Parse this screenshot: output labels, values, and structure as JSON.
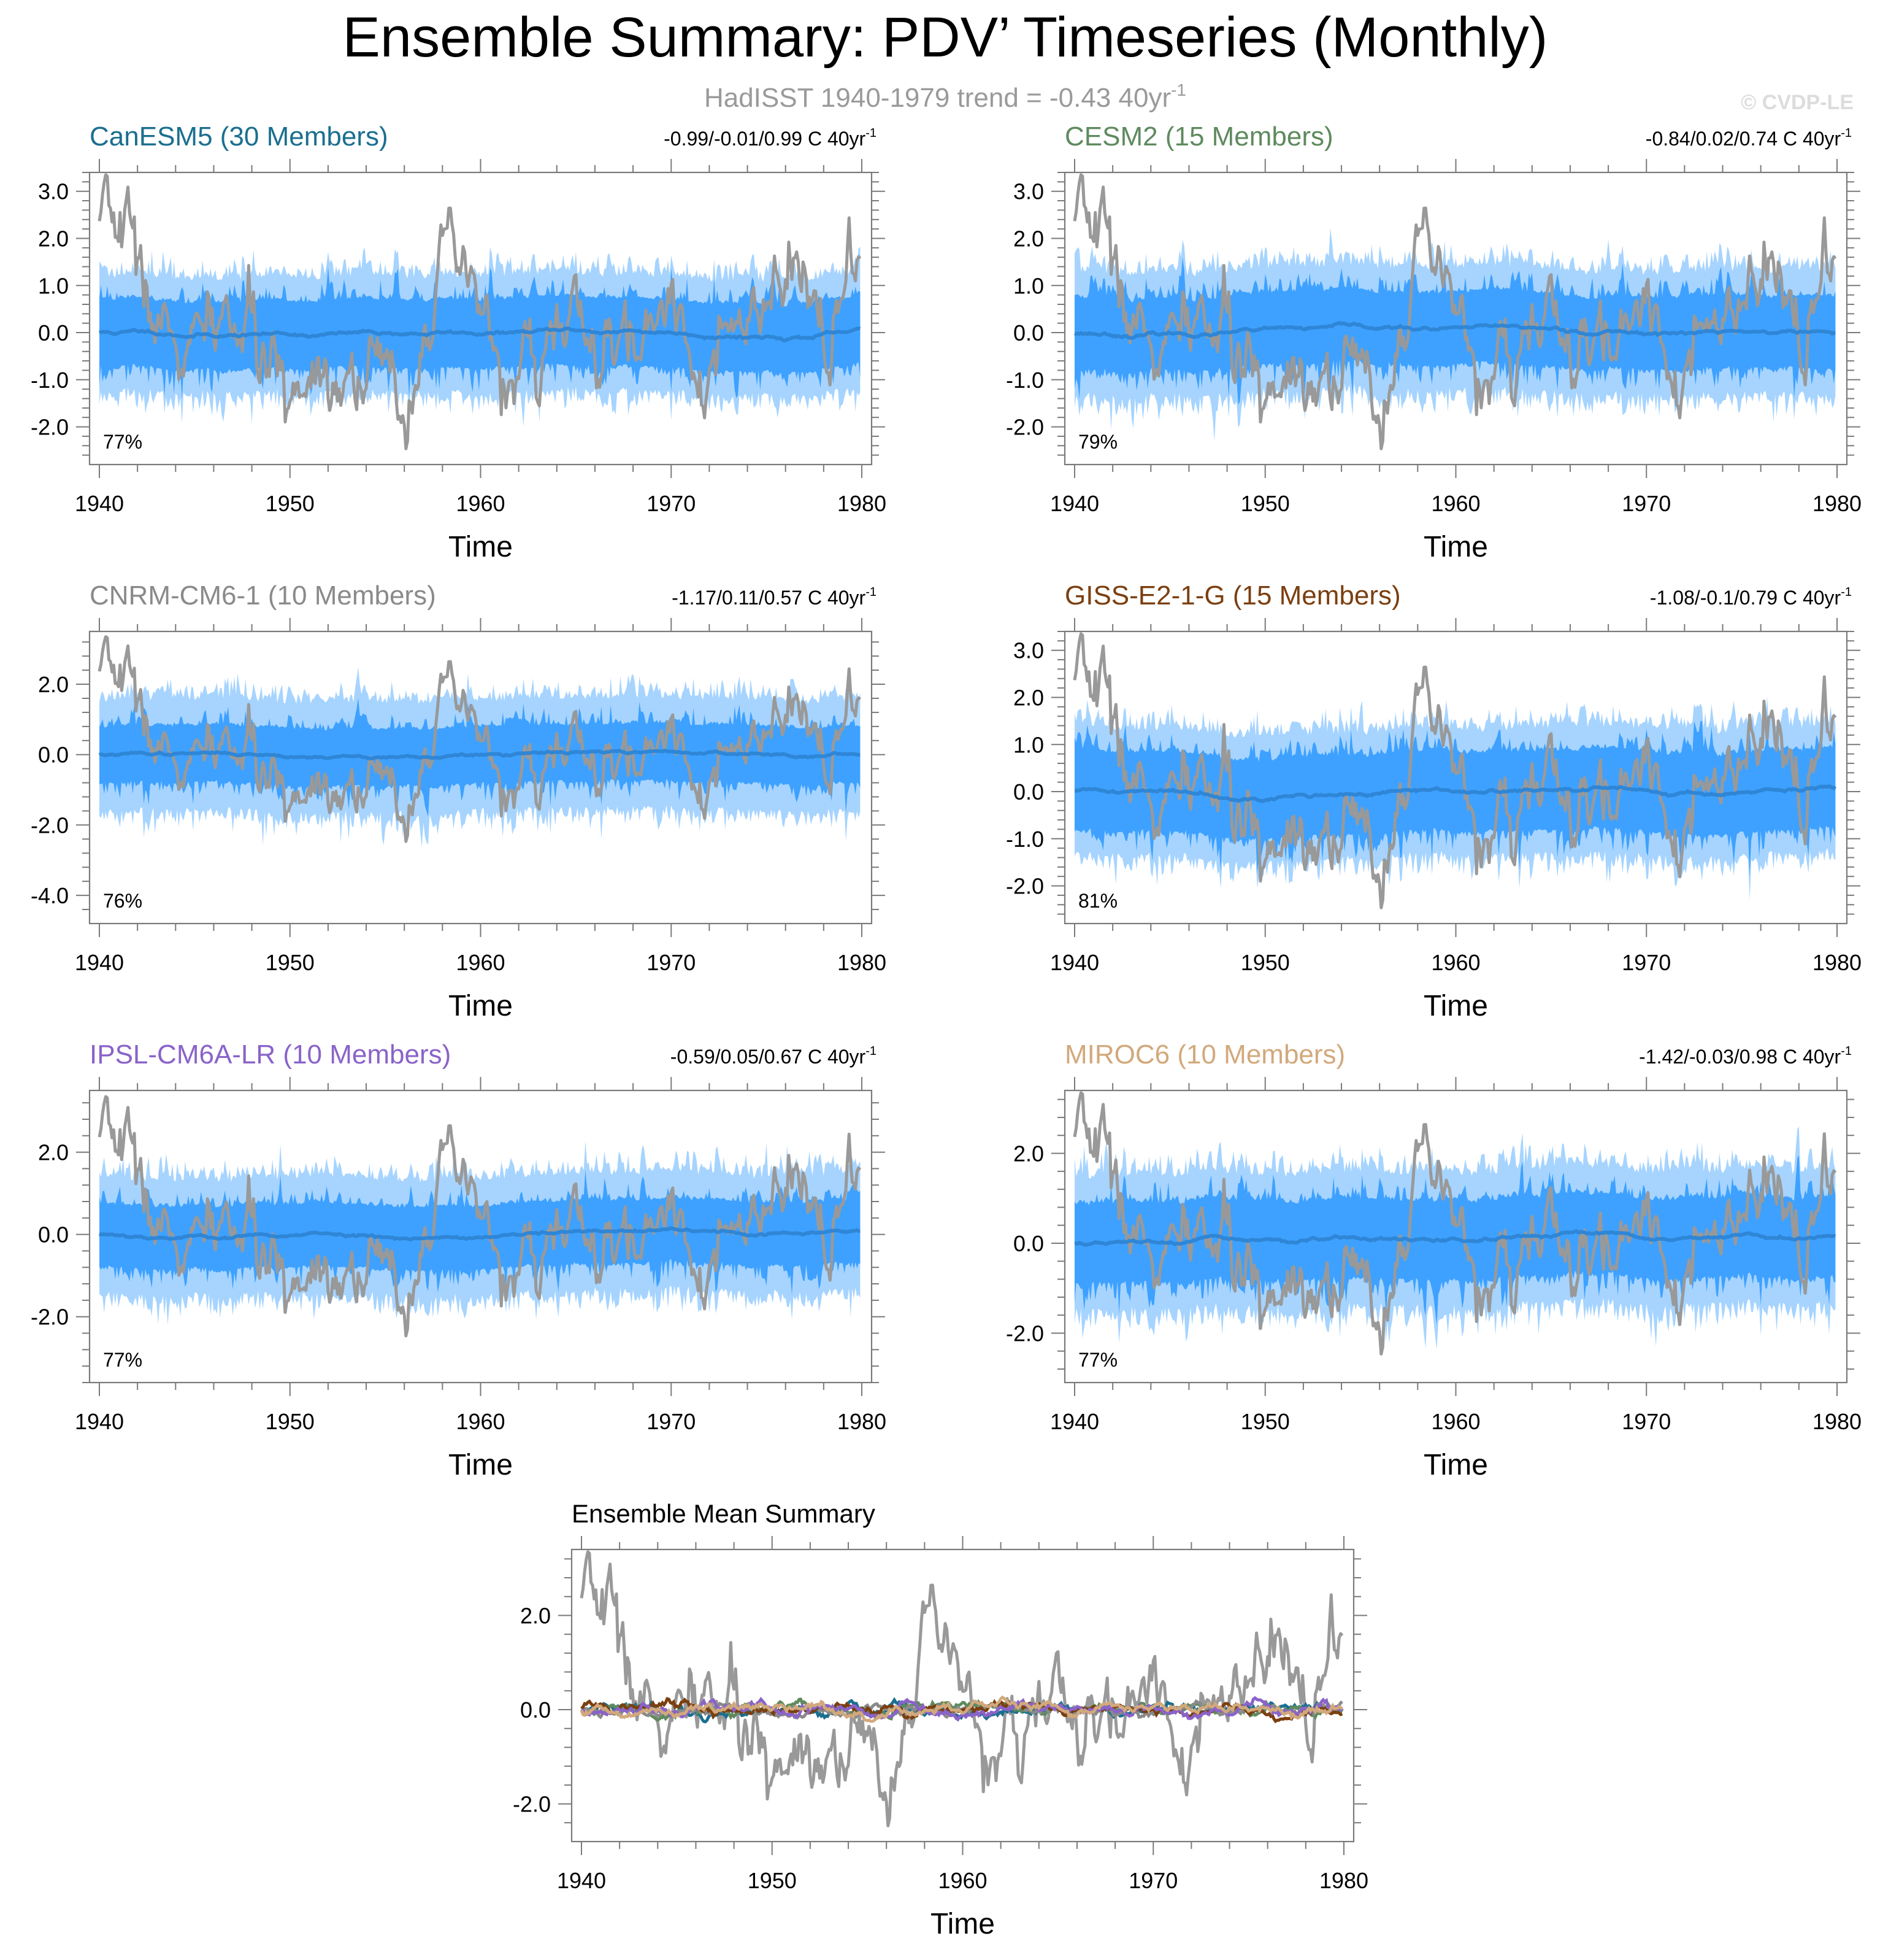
{
  "figure": {
    "title": "Ensemble Summary: PDV’ Timeseries (Monthly)",
    "subtitle_base": "HadISST 1940-1979 trend = -0.43 40yr",
    "subtitle_sup": "-1",
    "watermark": "© CVDP-LE"
  },
  "colors": {
    "obs": "#999999",
    "mean_line": "#2f86d6",
    "inner_band": "#3ea1ff",
    "outer_band": "#a6d4ff",
    "axis": "#7a7a7a"
  },
  "chart_data": [
    {
      "type": "area",
      "title": "CanESM5 (30 Members)",
      "title_color": "#1b6f8f",
      "trend_text": "-0.99/-0.01/0.99 C 40yr",
      "trend_sup": "-1",
      "percent_label": "77%",
      "xlabel": "Time",
      "xlim": [
        1940,
        1980
      ],
      "xticks": [
        "1940",
        "1950",
        "1960",
        "1970",
        "1980"
      ],
      "ylim": [
        -2.8,
        3.4
      ],
      "yticks": [
        "3.0",
        "2.0",
        "1.0",
        "0.0",
        "-1.0",
        "-2.0"
      ],
      "ytick_values": [
        3,
        2,
        1,
        0,
        -1,
        -2
      ],
      "band_scale": {
        "inner": 0.95,
        "outer": 1.65
      },
      "seed": 11
    },
    {
      "type": "area",
      "title": "CESM2 (15 Members)",
      "title_color": "#5f8a5f",
      "trend_text": "-0.84/0.02/0.74 C 40yr",
      "trend_sup": "-1",
      "percent_label": "79%",
      "xlabel": "Time",
      "xlim": [
        1940,
        1980
      ],
      "xticks": [
        "1940",
        "1950",
        "1960",
        "1970",
        "1980"
      ],
      "ylim": [
        -2.8,
        3.4
      ],
      "yticks": [
        "3.0",
        "2.0",
        "1.0",
        "0.0",
        "-1.0",
        "-2.0"
      ],
      "ytick_values": [
        3,
        2,
        1,
        0,
        -1,
        -2
      ],
      "band_scale": {
        "inner": 1.0,
        "outer": 1.75
      },
      "seed": 23
    },
    {
      "type": "area",
      "title": "CNRM-CM6-1 (10 Members)",
      "title_color": "#8a8a8a",
      "trend_text": "-1.17/0.11/0.57 C 40yr",
      "trend_sup": "-1",
      "percent_label": "76%",
      "xlabel": "Time",
      "xlim": [
        1940,
        1980
      ],
      "xticks": [
        "1940",
        "1950",
        "1960",
        "1970",
        "1980"
      ],
      "ylim": [
        -4.8,
        3.5
      ],
      "yticks": [
        "2.0",
        "0.0",
        "-2.0",
        "-4.0"
      ],
      "ytick_values": [
        2,
        0,
        -2,
        -4
      ],
      "band_scale": {
        "inner": 1.05,
        "outer": 2.1
      },
      "seed": 37
    },
    {
      "type": "area",
      "title": "GISS-E2-1-G (15 Members)",
      "title_color": "#7b3f10",
      "trend_text": "-1.08/-0.1/0.79 C 40yr",
      "trend_sup": "-1",
      "percent_label": "81%",
      "xlabel": "Time",
      "xlim": [
        1940,
        1980
      ],
      "xticks": [
        "1940",
        "1950",
        "1960",
        "1970",
        "1980"
      ],
      "ylim": [
        -2.8,
        3.4
      ],
      "yticks": [
        "3.0",
        "2.0",
        "1.0",
        "0.0",
        "-1.0",
        "-2.0"
      ],
      "ytick_values": [
        3,
        2,
        1,
        0,
        -1,
        -2
      ],
      "band_scale": {
        "inner": 1.1,
        "outer": 1.8
      },
      "seed": 41
    },
    {
      "type": "area",
      "title": "IPSL-CM6A-LR (10 Members)",
      "title_color": "#8a63c9",
      "trend_text": "-0.59/0.05/0.67 C 40yr",
      "trend_sup": "-1",
      "percent_label": "77%",
      "xlabel": "Time",
      "xlim": [
        1940,
        1980
      ],
      "xticks": [
        "1940",
        "1950",
        "1960",
        "1970",
        "1980"
      ],
      "ylim": [
        -3.6,
        3.5
      ],
      "yticks": [
        "2.0",
        "0.0",
        "-2.0"
      ],
      "ytick_values": [
        2,
        0,
        -2
      ],
      "band_scale": {
        "inner": 1.0,
        "outer": 1.9
      },
      "seed": 53
    },
    {
      "type": "area",
      "title": "MIROC6 (10 Members)",
      "title_color": "#d2a97c",
      "trend_text": "-1.42/-0.03/0.98 C 40yr",
      "trend_sup": "-1",
      "percent_label": "77%",
      "xlabel": "Time",
      "xlim": [
        1940,
        1980
      ],
      "xticks": [
        "1940",
        "1950",
        "1960",
        "1970",
        "1980"
      ],
      "ylim": [
        -3.1,
        3.4
      ],
      "yticks": [
        "2.0",
        "0.0",
        "-2.0"
      ],
      "ytick_values": [
        2,
        0,
        -2
      ],
      "band_scale": {
        "inner": 1.15,
        "outer": 2.0
      },
      "seed": 67
    },
    {
      "type": "line",
      "title": "Ensemble Mean Summary",
      "title_color": "#000000",
      "xlabel": "Time",
      "xlim": [
        1940,
        1980
      ],
      "xticks": [
        "1940",
        "1950",
        "1960",
        "1970",
        "1980"
      ],
      "ylim": [
        -2.8,
        3.4
      ],
      "yticks": [
        "2.0",
        "0.0",
        "-2.0"
      ],
      "ytick_values": [
        2,
        0,
        -2
      ],
      "series_colors": [
        "#1b6f8f",
        "#5f8a5f",
        "#8a8a8a",
        "#7b3f10",
        "#8a63c9",
        "#d2a97c"
      ],
      "seed": 79
    }
  ]
}
